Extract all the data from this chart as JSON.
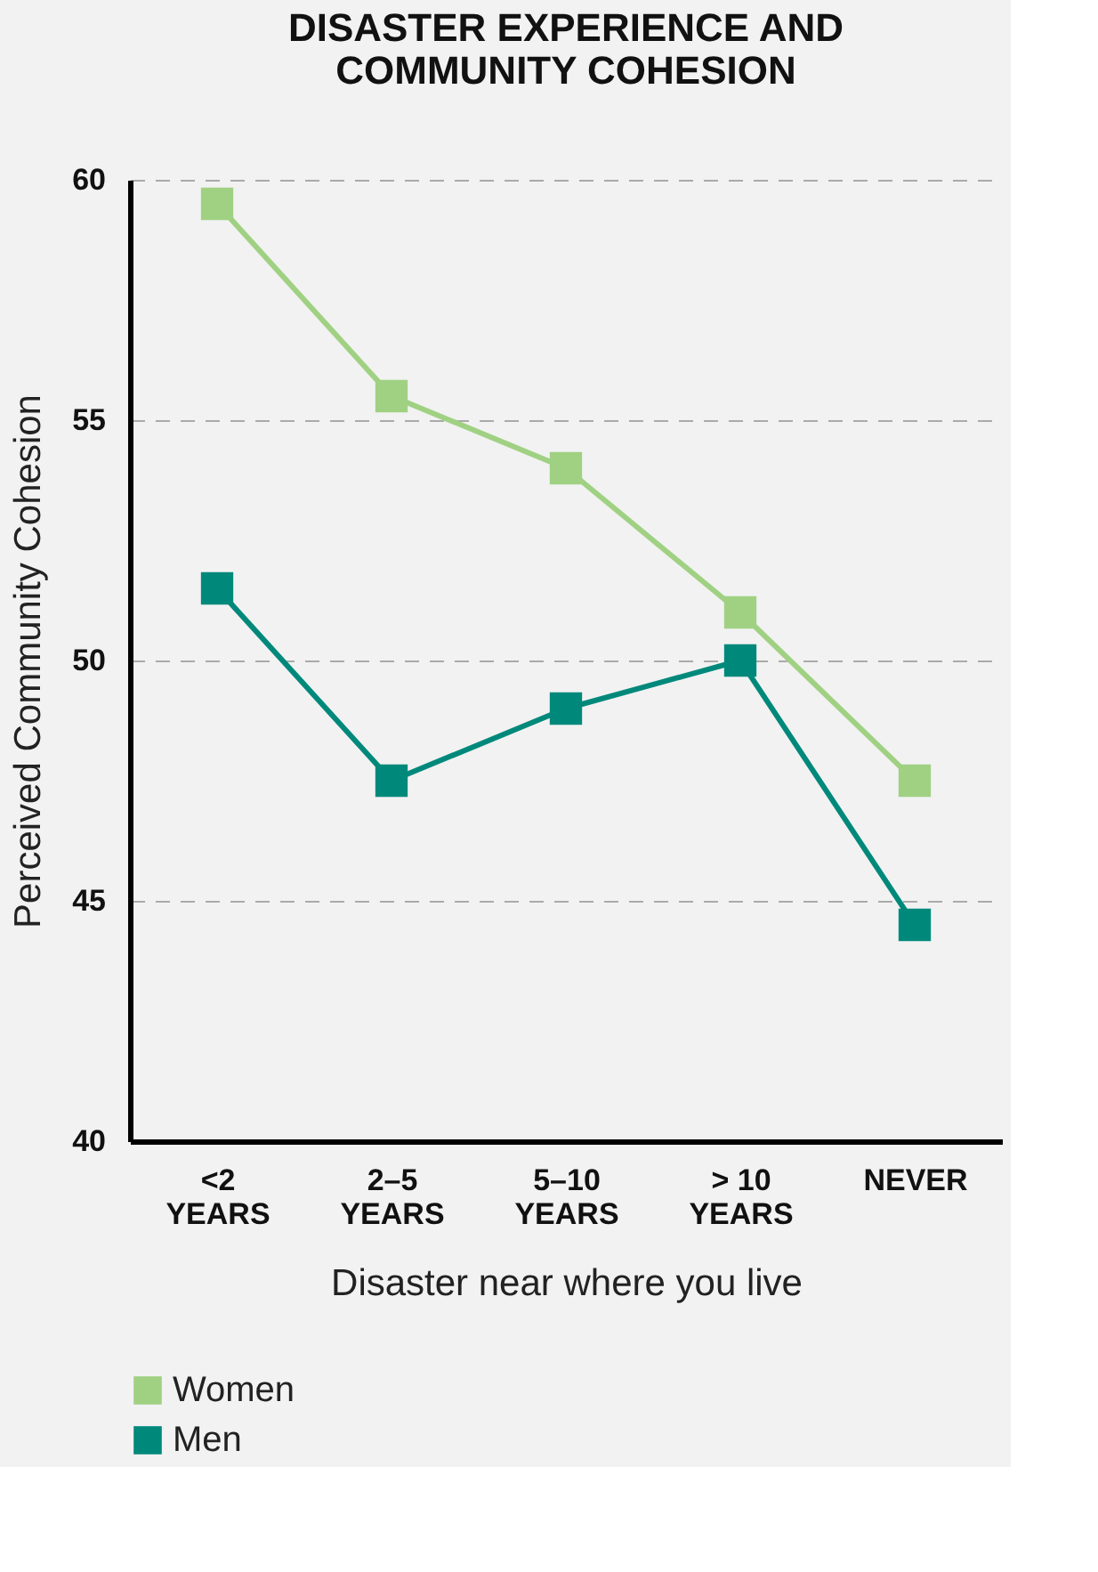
{
  "chart_data": {
    "type": "line",
    "title": "DISASTER EXPERIENCE AND\nCOMMUNITY COHESION",
    "xlabel": "Disaster near where you live",
    "ylabel": "Perceived Community Cohesion",
    "categories": [
      "<2\nYEARS",
      "2–5\nYEARS",
      "5–10\nYEARS",
      "> 10\nYEARS",
      "NEVER"
    ],
    "series": [
      {
        "name": "Women",
        "color": "#a0d183",
        "values": [
          59.5,
          55.5,
          54,
          51,
          47.5
        ]
      },
      {
        "name": "Men",
        "color": "#00897b",
        "values": [
          51.5,
          47.5,
          49,
          50,
          44.5
        ]
      }
    ],
    "ylim": [
      40,
      60
    ],
    "yticks": [
      40,
      45,
      50,
      55,
      60
    ],
    "grid": "y",
    "legend": "bottom left",
    "marker": "square",
    "line_style": "solid"
  }
}
